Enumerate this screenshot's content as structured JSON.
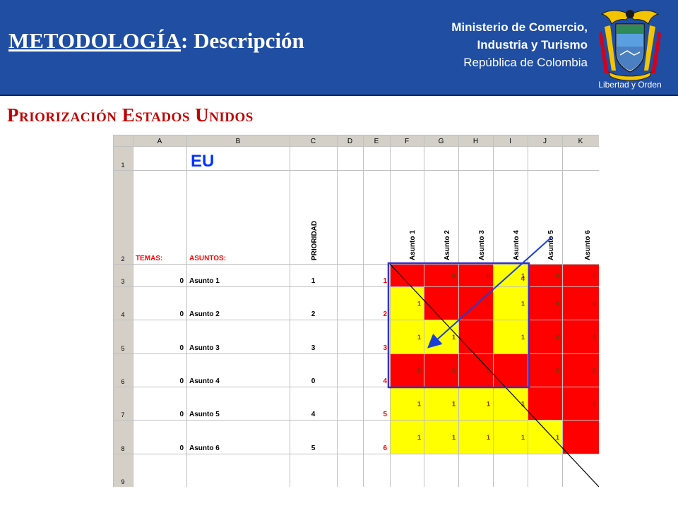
{
  "header": {
    "title_prefix": "METODOLOGÍA",
    "title_suffix": ": Descripción",
    "ministry_line1": "Ministerio de Comercio,",
    "ministry_line2": "Industria y Turismo",
    "ministry_line3": "República de Colombia",
    "crest_motto": "Libertad y Orden"
  },
  "subtitle": "Priorización Estados Unidos",
  "spreadsheet": {
    "column_letters": [
      "A",
      "B",
      "C",
      "D",
      "E",
      "F",
      "G",
      "H",
      "I",
      "J",
      "K"
    ],
    "row_numbers": [
      "1",
      "2",
      "3",
      "4",
      "5",
      "6",
      "7",
      "8",
      "9"
    ],
    "title_cell": "EU",
    "header_temas": "TEMAS:",
    "header_asuntos": "ASUNTOS:",
    "header_prioridad": "PRIORIDAD",
    "matrix_headers": [
      "Asunto 1",
      "Asunto 2",
      "Asunto 3",
      "Asunto 4",
      "Asunto 5",
      "Asunto 6"
    ],
    "matrix_index_row": [
      "1",
      "2",
      "3",
      "4",
      "5",
      "6"
    ],
    "rows": [
      {
        "tema": "0",
        "asunto": "Asunto 1",
        "prioridad": "1",
        "index": "1",
        "cells": [
          "",
          "0",
          "0",
          "1",
          "0",
          "0"
        ]
      },
      {
        "tema": "0",
        "asunto": "Asunto 2",
        "prioridad": "2",
        "index": "2",
        "cells": [
          "1",
          "",
          "0",
          "1",
          "0",
          "0"
        ]
      },
      {
        "tema": "0",
        "asunto": "Asunto 3",
        "prioridad": "3",
        "index": "3",
        "cells": [
          "1",
          "1",
          "",
          "1",
          "0",
          "0"
        ]
      },
      {
        "tema": "0",
        "asunto": "Asunto 4",
        "prioridad": "0",
        "index": "4",
        "cells": [
          "0",
          "0",
          "0",
          "",
          "0",
          "0"
        ]
      },
      {
        "tema": "0",
        "asunto": "Asunto 5",
        "prioridad": "4",
        "index": "5",
        "cells": [
          "1",
          "1",
          "1",
          "1",
          "",
          "0"
        ]
      },
      {
        "tema": "0",
        "asunto": "Asunto 6",
        "prioridad": "5",
        "index": "6",
        "cells": [
          "1",
          "1",
          "1",
          "1",
          "1",
          ""
        ]
      }
    ],
    "cell_colors": [
      [
        "red",
        "red",
        "red",
        "yellow",
        "red",
        "red"
      ],
      [
        "yellow",
        "red",
        "red",
        "yellow",
        "red",
        "red"
      ],
      [
        "yellow",
        "yellow",
        "red",
        "yellow",
        "red",
        "red"
      ],
      [
        "red",
        "red",
        "red",
        "red",
        "red",
        "red"
      ],
      [
        "yellow",
        "yellow",
        "yellow",
        "yellow",
        "red",
        "red"
      ],
      [
        "yellow",
        "yellow",
        "yellow",
        "yellow",
        "yellow",
        "red"
      ]
    ],
    "colors": {
      "red": "#ff0000",
      "yellow": "#ffff00",
      "grid": "#c0c0c0",
      "header_bg": "#d4d0c8",
      "label_red": "#ff0000",
      "title_blue": "#0033ff",
      "highlight": "#3333cc"
    }
  }
}
